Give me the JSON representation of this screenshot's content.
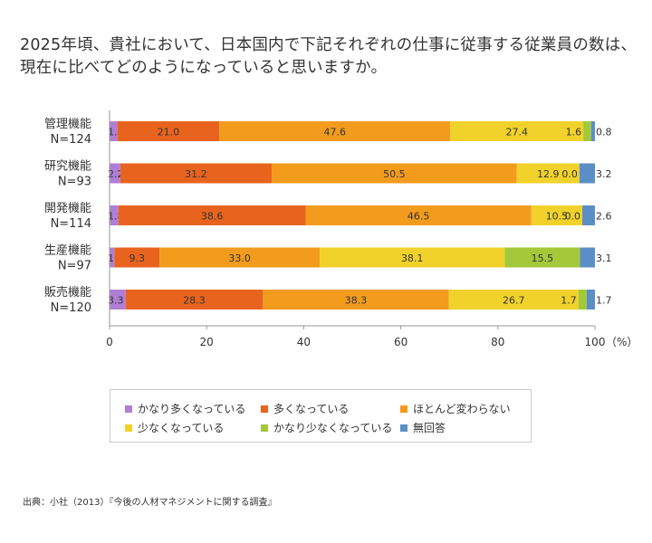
{
  "title_lines": [
    "2025年頃、貴社において、日本国内で下記それぞれの仕事に従事する従業員の数は、",
    "現在に比べてどのようになっていると思いますか。"
  ],
  "source": "出典：小社（2013）『今後の人材マネジメントに関する調査』",
  "colors": [
    "#b07ed6",
    "#e8641e",
    "#f29b1d",
    "#f0d22a",
    "#a3c93a",
    "#5b8ec7"
  ],
  "chart_data": {
    "type": "bar",
    "orientation": "horizontal",
    "stacked": true,
    "categories": [
      {
        "name": "管理機能",
        "n": "N=124"
      },
      {
        "name": "研究機能",
        "n": "N=93"
      },
      {
        "name": "開発機能",
        "n": "N=114"
      },
      {
        "name": "生産機能",
        "n": "N=97"
      },
      {
        "name": "販売機能",
        "n": "N=120"
      }
    ],
    "series": [
      {
        "name": "かなり多くなっている",
        "values": [
          1.6,
          2.2,
          1.8,
          1.0,
          3.3
        ]
      },
      {
        "name": "多くなっている",
        "values": [
          21.0,
          31.2,
          38.6,
          9.3,
          28.3
        ]
      },
      {
        "name": "ほとんど変わらない",
        "values": [
          47.6,
          50.5,
          46.5,
          33.0,
          38.3
        ]
      },
      {
        "name": "少なくなっている",
        "values": [
          27.4,
          12.9,
          10.5,
          38.1,
          26.7
        ]
      },
      {
        "name": "かなり少なくなっている",
        "values": [
          1.6,
          0.0,
          0.0,
          15.5,
          1.7
        ]
      },
      {
        "name": "無回答",
        "values": [
          0.8,
          3.2,
          2.6,
          3.1,
          1.7
        ]
      }
    ],
    "xlim": [
      0,
      100
    ],
    "xticks": [
      0,
      20,
      40,
      60,
      80,
      100
    ],
    "xunit": "（%）",
    "legend_position": "bottom"
  }
}
